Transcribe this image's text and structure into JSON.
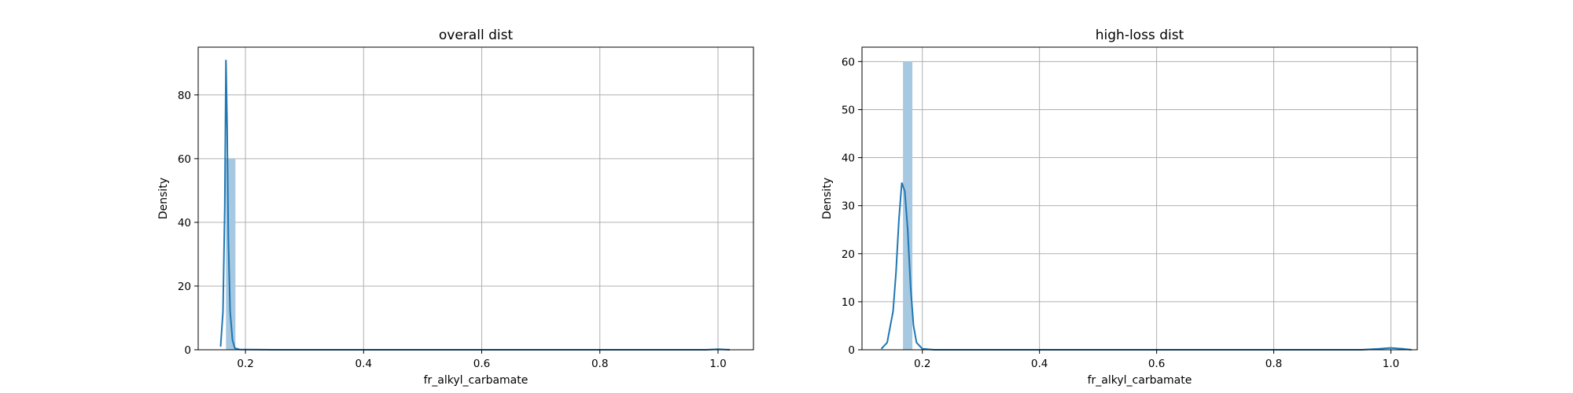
{
  "chart_data": [
    {
      "type": "bar",
      "title": "overall dist",
      "xlabel": "fr_alkyl_carbamate",
      "ylabel": "Density",
      "xlim": [
        0.12,
        1.06
      ],
      "ylim": [
        0,
        95
      ],
      "xticks": [
        "0.2",
        "0.4",
        "0.6",
        "0.8",
        "1.0"
      ],
      "xtick_values": [
        0.2,
        0.4,
        0.6,
        0.8,
        1.0
      ],
      "yticks": [
        "0",
        "20",
        "40",
        "60",
        "80"
      ],
      "ytick_values": [
        0,
        20,
        40,
        60,
        80
      ],
      "grid": true,
      "histogram": [
        {
          "x0": 0.167,
          "x1": 0.183,
          "density": 60
        }
      ],
      "kde": {
        "x": [
          0.158,
          0.162,
          0.165,
          0.167,
          0.169,
          0.171,
          0.174,
          0.178,
          0.182,
          0.19,
          0.25,
          0.5,
          0.8,
          0.98,
          1.0,
          1.02
        ],
        "y": [
          1,
          12,
          45,
          91,
          70,
          35,
          12,
          3,
          0.5,
          0.1,
          0,
          0,
          0,
          0,
          0.2,
          0
        ]
      },
      "colors": {
        "bar": "#a6c8e0",
        "kde": "#1f77b4"
      }
    },
    {
      "type": "bar",
      "title": "high-loss dist",
      "xlabel": "fr_alkyl_carbamate",
      "ylabel": "Density",
      "xlim": [
        0.097,
        1.045
      ],
      "ylim": [
        0,
        63
      ],
      "xticks": [
        "0.2",
        "0.4",
        "0.6",
        "0.8",
        "1.0"
      ],
      "xtick_values": [
        0.2,
        0.4,
        0.6,
        0.8,
        1.0
      ],
      "yticks": [
        "0",
        "10",
        "20",
        "30",
        "40",
        "50",
        "60"
      ],
      "ytick_values": [
        0,
        10,
        20,
        30,
        40,
        50,
        60
      ],
      "grid": true,
      "histogram": [
        {
          "x0": 0.167,
          "x1": 0.183,
          "density": 60
        }
      ],
      "kde": {
        "x": [
          0.13,
          0.14,
          0.15,
          0.155,
          0.16,
          0.165,
          0.17,
          0.175,
          0.18,
          0.185,
          0.19,
          0.2,
          0.22,
          0.3,
          0.6,
          0.95,
          0.98,
          1.0,
          1.02,
          1.035
        ],
        "y": [
          0.2,
          1.5,
          8,
          16,
          27,
          34.8,
          33,
          25,
          13,
          5,
          1.5,
          0.2,
          0,
          0,
          0,
          0,
          0.2,
          0.4,
          0.2,
          0
        ]
      },
      "colors": {
        "bar": "#a6c8e0",
        "kde": "#1f77b4"
      }
    }
  ]
}
